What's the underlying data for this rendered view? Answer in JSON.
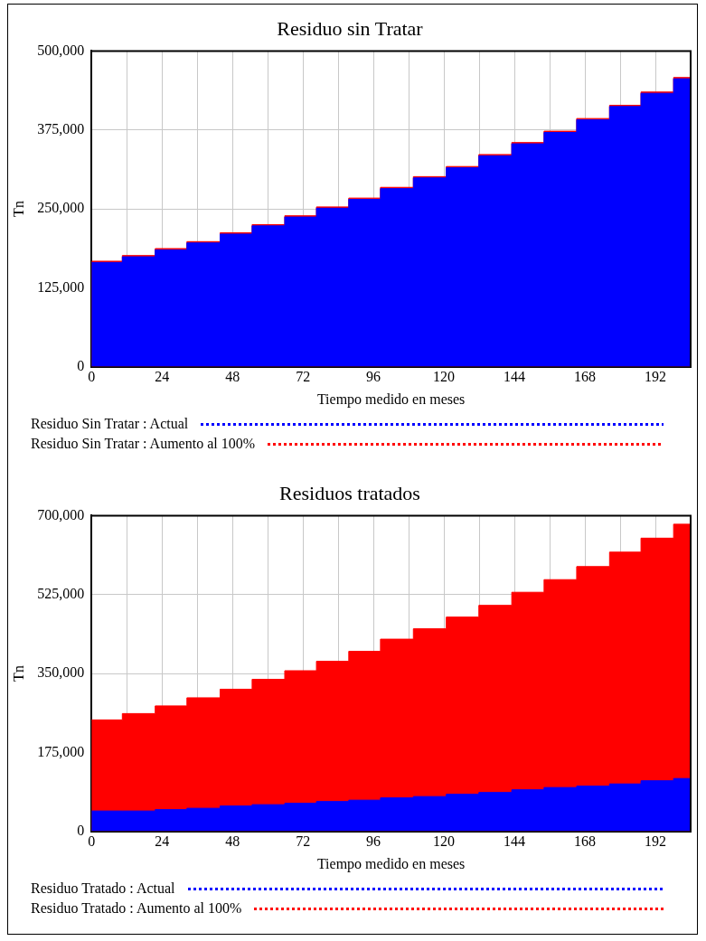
{
  "chart_data": [
    {
      "type": "area",
      "title": "Residuo sin Tratar",
      "xlabel": "Tiempo medido en meses",
      "ylabel": "Tn",
      "x": [
        0,
        10.5,
        10.5,
        21.7,
        21.7,
        32.5,
        32.5,
        43.8,
        43.8,
        54.7,
        54.7,
        65.8,
        65.8,
        76.6,
        76.6,
        87.6,
        87.6,
        98.4,
        98.4,
        109.6,
        109.6,
        120.8,
        120.8,
        131.9,
        131.9,
        143.1,
        143.1,
        154.1,
        154.1,
        165.2,
        165.2,
        176.4,
        176.4,
        187.1,
        187.1,
        198.2,
        198.2,
        204
      ],
      "series": [
        {
          "name": "Residuo Sin Tratar : Actual",
          "color": "#0000ff",
          "values": [
            165000,
            165000,
            174000,
            174000,
            185000,
            185000,
            196000,
            196000,
            210000,
            210000,
            223000,
            223000,
            237000,
            237000,
            251000,
            251000,
            265000,
            265000,
            282000,
            282000,
            299000,
            299000,
            315000,
            315000,
            334000,
            334000,
            353000,
            353000,
            371000,
            371000,
            391000,
            391000,
            412000,
            412000,
            433000,
            433000,
            456000,
            456000
          ]
        },
        {
          "name": "Residuo Sin Tratar : Aumento al 100%",
          "color": "#ff0000",
          "values": [
            167000,
            167000,
            176000,
            176000,
            187000,
            187000,
            198000,
            198000,
            212000,
            212000,
            225000,
            225000,
            239000,
            239000,
            253000,
            253000,
            267000,
            267000,
            284000,
            284000,
            301000,
            301000,
            317000,
            317000,
            336000,
            336000,
            355000,
            355000,
            373000,
            373000,
            393000,
            393000,
            414000,
            414000,
            435000,
            435000,
            458000,
            458000
          ]
        }
      ],
      "xlim": [
        0,
        204
      ],
      "ylim": [
        0,
        500000
      ],
      "xticks": [
        0,
        {
          "value": 12,
          "label": null
        },
        24,
        {
          "value": 36,
          "label": null
        },
        48,
        {
          "value": 60,
          "label": null
        },
        72,
        {
          "value": 84,
          "label": null
        },
        96,
        {
          "value": 108,
          "label": null
        },
        120,
        {
          "value": 132,
          "label": null
        },
        144,
        {
          "value": 156,
          "label": null
        },
        168,
        {
          "value": 180,
          "label": null
        },
        192
      ],
      "yticks": [
        {
          "value": 0,
          "label": "0"
        },
        {
          "value": 125000,
          "label": "125,000"
        },
        {
          "value": 250000,
          "label": "250,000"
        },
        {
          "value": 375000,
          "label": "375,000"
        },
        {
          "value": 500000,
          "label": "500,000"
        }
      ],
      "grid": true,
      "legend": "bottom",
      "line_style": "dotted"
    },
    {
      "type": "area",
      "title": "Residuos tratados",
      "xlabel": "Tiempo medido en meses",
      "ylabel": "Tn",
      "x": [
        0,
        10.5,
        10.5,
        21.7,
        21.7,
        32.5,
        32.5,
        43.8,
        43.8,
        54.7,
        54.7,
        65.8,
        65.8,
        76.6,
        76.6,
        87.6,
        87.6,
        98.4,
        98.4,
        109.6,
        109.6,
        120.8,
        120.8,
        131.9,
        131.9,
        143.1,
        143.1,
        154.1,
        154.1,
        165.2,
        165.2,
        176.4,
        176.4,
        187.1,
        187.1,
        198.2,
        198.2,
        204
      ],
      "series": [
        {
          "name": "Residuo Tratado : Actual",
          "color": "#0000ff",
          "values": [
            45000,
            45000,
            45000,
            45000,
            48000,
            48000,
            51000,
            51000,
            56000,
            56000,
            59000,
            59000,
            62000,
            62000,
            66000,
            66000,
            69000,
            69000,
            74000,
            74000,
            77000,
            77000,
            82000,
            82000,
            86000,
            86000,
            92000,
            92000,
            97000,
            97000,
            100000,
            100000,
            105000,
            105000,
            112000,
            112000,
            117000,
            117000
          ]
        },
        {
          "name": "Residuo Tratado : Aumento al 100%",
          "color": "#ff0000",
          "values": [
            247000,
            247000,
            261000,
            261000,
            278000,
            278000,
            296000,
            296000,
            315000,
            315000,
            337000,
            337000,
            356000,
            356000,
            377000,
            377000,
            399000,
            399000,
            426000,
            426000,
            449000,
            449000,
            475000,
            475000,
            501000,
            501000,
            530000,
            530000,
            558000,
            558000,
            587000,
            587000,
            619000,
            619000,
            650000,
            650000,
            681000,
            681000
          ]
        }
      ],
      "xlim": [
        0,
        204
      ],
      "ylim": [
        0,
        700000
      ],
      "xticks": [
        0,
        {
          "value": 12,
          "label": null
        },
        24,
        {
          "value": 36,
          "label": null
        },
        48,
        {
          "value": 60,
          "label": null
        },
        72,
        {
          "value": 84,
          "label": null
        },
        96,
        {
          "value": 108,
          "label": null
        },
        120,
        {
          "value": 132,
          "label": null
        },
        144,
        {
          "value": 156,
          "label": null
        },
        168,
        {
          "value": 180,
          "label": null
        },
        192
      ],
      "yticks": [
        {
          "value": 0,
          "label": "0"
        },
        {
          "value": 175000,
          "label": "175,000"
        },
        {
          "value": 350000,
          "label": "350,000"
        },
        {
          "value": 525000,
          "label": "525,000"
        },
        {
          "value": 700000,
          "label": "700,000"
        }
      ],
      "grid": true,
      "legend": "bottom",
      "line_style": "dotted"
    }
  ]
}
